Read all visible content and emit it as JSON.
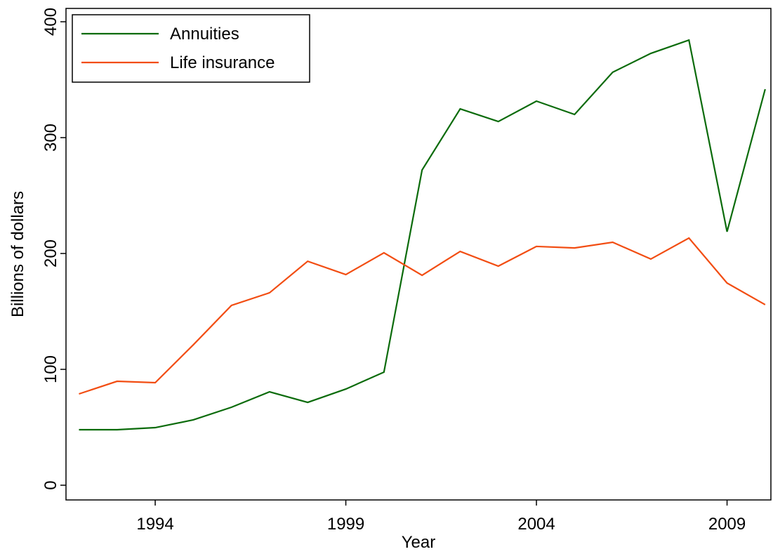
{
  "chart_data": {
    "type": "line",
    "x": [
      1992,
      1993,
      1994,
      1995,
      1996,
      1997,
      1998,
      1999,
      2000,
      2001,
      2002,
      2003,
      2004,
      2005,
      2006,
      2007,
      2008,
      2009,
      2010
    ],
    "series": [
      {
        "name": "Annuities",
        "color": "#0b6b0b",
        "values": [
          47.9,
          47.9,
          49.7,
          56.4,
          67.3,
          80.6,
          71.5,
          83,
          97.6,
          272,
          324.8,
          313.9,
          331.5,
          320,
          356.4,
          372.7,
          384.2,
          218.8,
          341.8
        ]
      },
      {
        "name": "Life insurance",
        "color": "#f24d12",
        "values": [
          78.8,
          89.7,
          88.5,
          121.2,
          155.2,
          166.1,
          193.3,
          181.8,
          200.6,
          181.2,
          201.8,
          189.1,
          206.1,
          204.8,
          209.7,
          195.2,
          213.3,
          174.5,
          155.8
        ]
      }
    ],
    "xlabel": "Year",
    "ylabel": "Billions of dollars",
    "xlim": [
      1991.66,
      2010.15
    ],
    "xticks": [
      1994,
      1999,
      2004,
      2009
    ],
    "ylim": [
      -12.7,
      411.5
    ],
    "yticks": [
      0,
      100,
      200,
      300,
      400
    ],
    "legend": "upper left",
    "grid": false
  }
}
